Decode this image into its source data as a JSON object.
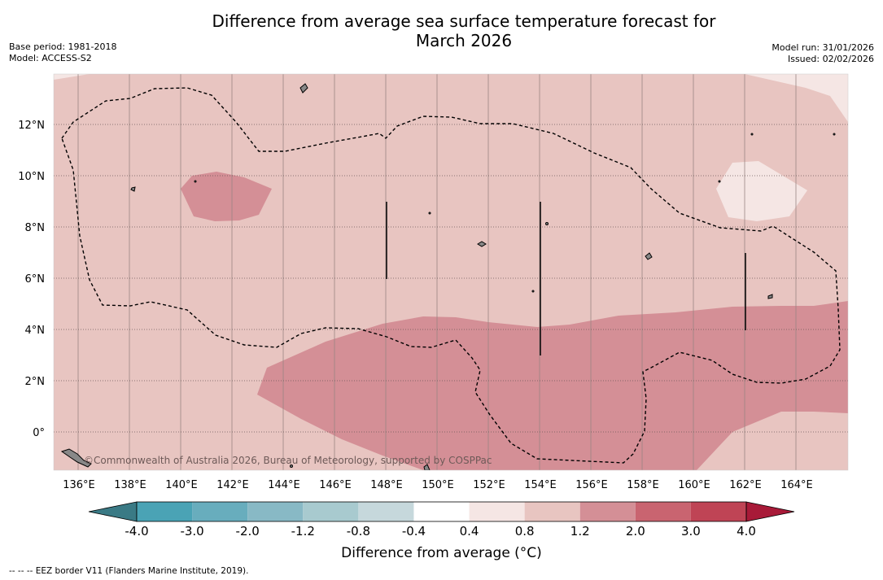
{
  "title_line1": "Difference from average sea surface temperature forecast for",
  "title_line2": "March 2026",
  "base_period": "Base period: 1981-2018",
  "model": "Model: ACCESS-S2",
  "model_run": "Model run: 31/01/2026",
  "issued": "Issued: 02/02/2026",
  "copyright": "©Commonwealth of Australia 2026, Bureau of Meteorology, supported by COSPPac",
  "lat_labels": [
    "12°N",
    "10°N",
    "8°N",
    "6°N",
    "4°N",
    "2°N",
    "0°"
  ],
  "lon_labels": [
    "136°E",
    "138°E",
    "140°E",
    "142°E",
    "144°E",
    "146°E",
    "148°E",
    "150°E",
    "152°E",
    "154°E",
    "156°E",
    "158°E",
    "160°E",
    "162°E",
    "164°E"
  ],
  "colorbar": {
    "title": "Difference from average (°C)",
    "tick_labels": [
      "-4.0",
      "-3.0",
      "-2.0",
      "-1.2",
      "-0.8",
      "-0.4",
      "0.4",
      "0.8",
      "1.2",
      "2.0",
      "3.0",
      "4.0"
    ],
    "colors": [
      "#3a7a85",
      "#4aa3b5",
      "#68adbd",
      "#88b9c5",
      "#a8cacf",
      "#c6d8dc",
      "#ffffff",
      "#f5e6e4",
      "#e8c5c1",
      "#d48f96",
      "#c96470",
      "#bf4455",
      "#a81a38"
    ]
  },
  "footnote": "-- -- -- EEZ border V11 (Flanders Marine Institute, 2019).",
  "colors": {
    "anomaly_0_8_1_2": "#e8c5c1",
    "anomaly_1_2_2_0": "#d48f96",
    "anomaly_0_4_0_8": "#f5e6e4"
  }
}
